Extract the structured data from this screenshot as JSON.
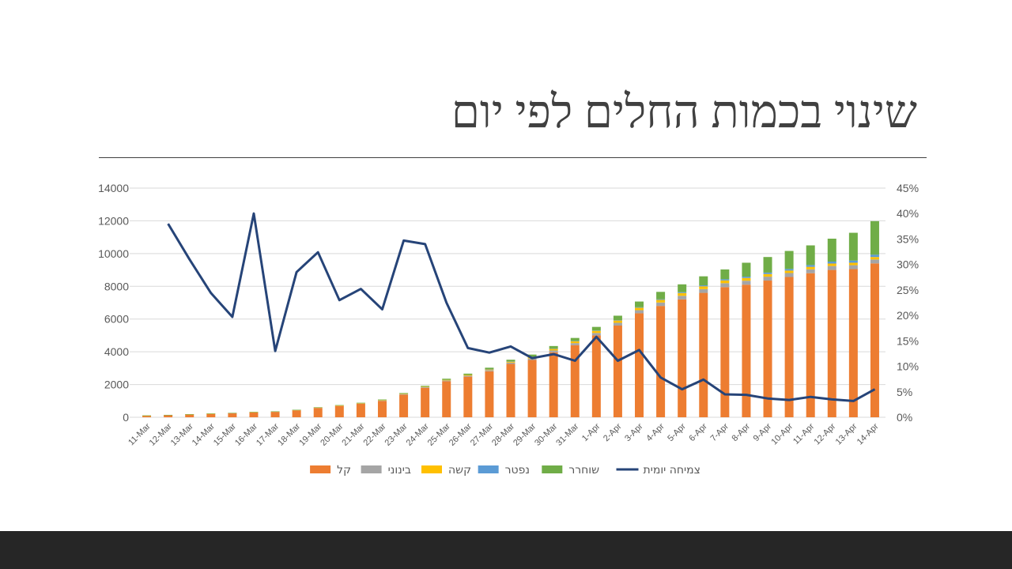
{
  "slide": {
    "title": "שינוי בכמות החלים לפי יום"
  },
  "colors": {
    "light": "#ED7D31",
    "medium": "#A5A5A5",
    "severe": "#FFC000",
    "deceased": "#5B9BD5",
    "recovered": "#70AD47",
    "growth": "#264478",
    "grid": "#D9D9D9",
    "footer": "#262626"
  },
  "chart_data": {
    "type": "bar",
    "stacked": true,
    "secondary_line": true,
    "categories": [
      "11-Mar",
      "12-Mar",
      "13-Mar",
      "14-Mar",
      "15-Mar",
      "16-Mar",
      "17-Mar",
      "18-Mar",
      "19-Mar",
      "20-Mar",
      "21-Mar",
      "22-Mar",
      "23-Mar",
      "24-Mar",
      "25-Mar",
      "26-Mar",
      "27-Mar",
      "28-Mar",
      "29-Mar",
      "30-Mar",
      "31-Mar",
      "1-Apr",
      "2-Apr",
      "3-Apr",
      "4-Apr",
      "5-Apr",
      "6-Apr",
      "7-Apr",
      "8-Apr",
      "9-Apr",
      "10-Apr",
      "11-Apr",
      "12-Apr",
      "13-Apr",
      "14-Apr"
    ],
    "series": [
      {
        "name": "קל",
        "key": "light",
        "values": [
          95,
          130,
          170,
          205,
          245,
          300,
          335,
          420,
          570,
          690,
          820,
          1000,
          1380,
          1800,
          2200,
          2480,
          2810,
          3260,
          3500,
          3970,
          4400,
          5000,
          5600,
          6350,
          6800,
          7200,
          7600,
          7950,
          8100,
          8350,
          8570,
          8800,
          9000,
          9050,
          9400
        ]
      },
      {
        "name": "בינוני",
        "key": "medium",
        "values": [
          10,
          10,
          10,
          15,
          15,
          15,
          15,
          20,
          20,
          25,
          25,
          30,
          35,
          40,
          50,
          60,
          70,
          80,
          90,
          110,
          130,
          150,
          170,
          190,
          210,
          220,
          230,
          240,
          240,
          240,
          240,
          240,
          240,
          240,
          240
        ]
      },
      {
        "name": "קשה",
        "key": "severe",
        "values": [
          3,
          3,
          4,
          5,
          5,
          6,
          6,
          7,
          8,
          10,
          12,
          15,
          20,
          25,
          35,
          45,
          55,
          70,
          90,
          110,
          120,
          130,
          140,
          150,
          160,
          170,
          170,
          170,
          170,
          160,
          150,
          150,
          150,
          150,
          150
        ]
      },
      {
        "name": "נפטר",
        "key": "deceased",
        "values": [
          0,
          0,
          0,
          0,
          0,
          0,
          0,
          0,
          0,
          0,
          0,
          0,
          0,
          0,
          0,
          0,
          3,
          5,
          10,
          12,
          15,
          20,
          25,
          30,
          40,
          50,
          60,
          70,
          80,
          90,
          100,
          110,
          120,
          130,
          140
        ]
      },
      {
        "name": "שוחרר",
        "key": "recovered",
        "values": [
          4,
          4,
          4,
          4,
          4,
          4,
          4,
          10,
          15,
          20,
          30,
          40,
          45,
          55,
          70,
          80,
          90,
          100,
          140,
          150,
          180,
          220,
          270,
          350,
          450,
          480,
          550,
          600,
          850,
          950,
          1100,
          1200,
          1400,
          1700,
          2050
        ]
      }
    ],
    "line": {
      "name": "צמיחה יומית",
      "key": "growth",
      "values": [
        null,
        0.38,
        0.31,
        0.244,
        0.197,
        0.4,
        0.13,
        0.285,
        0.324,
        0.23,
        0.252,
        0.212,
        0.347,
        0.34,
        0.225,
        0.136,
        0.127,
        0.139,
        0.116,
        0.124,
        0.111,
        0.158,
        0.111,
        0.132,
        0.078,
        0.055,
        0.074,
        0.045,
        0.044,
        0.037,
        0.034,
        0.04,
        0.035,
        0.032,
        0.055
      ]
    },
    "ylim": [
      0,
      14000
    ],
    "y_ticks": [
      "0",
      "2000",
      "4000",
      "6000",
      "8000",
      "10000",
      "12000",
      "14000"
    ],
    "y2lim": [
      0,
      0.45
    ],
    "y2_ticks": [
      "0%",
      "5%",
      "10%",
      "15%",
      "20%",
      "25%",
      "30%",
      "35%",
      "40%",
      "45%"
    ],
    "legend_position": "bottom",
    "grid": true
  }
}
